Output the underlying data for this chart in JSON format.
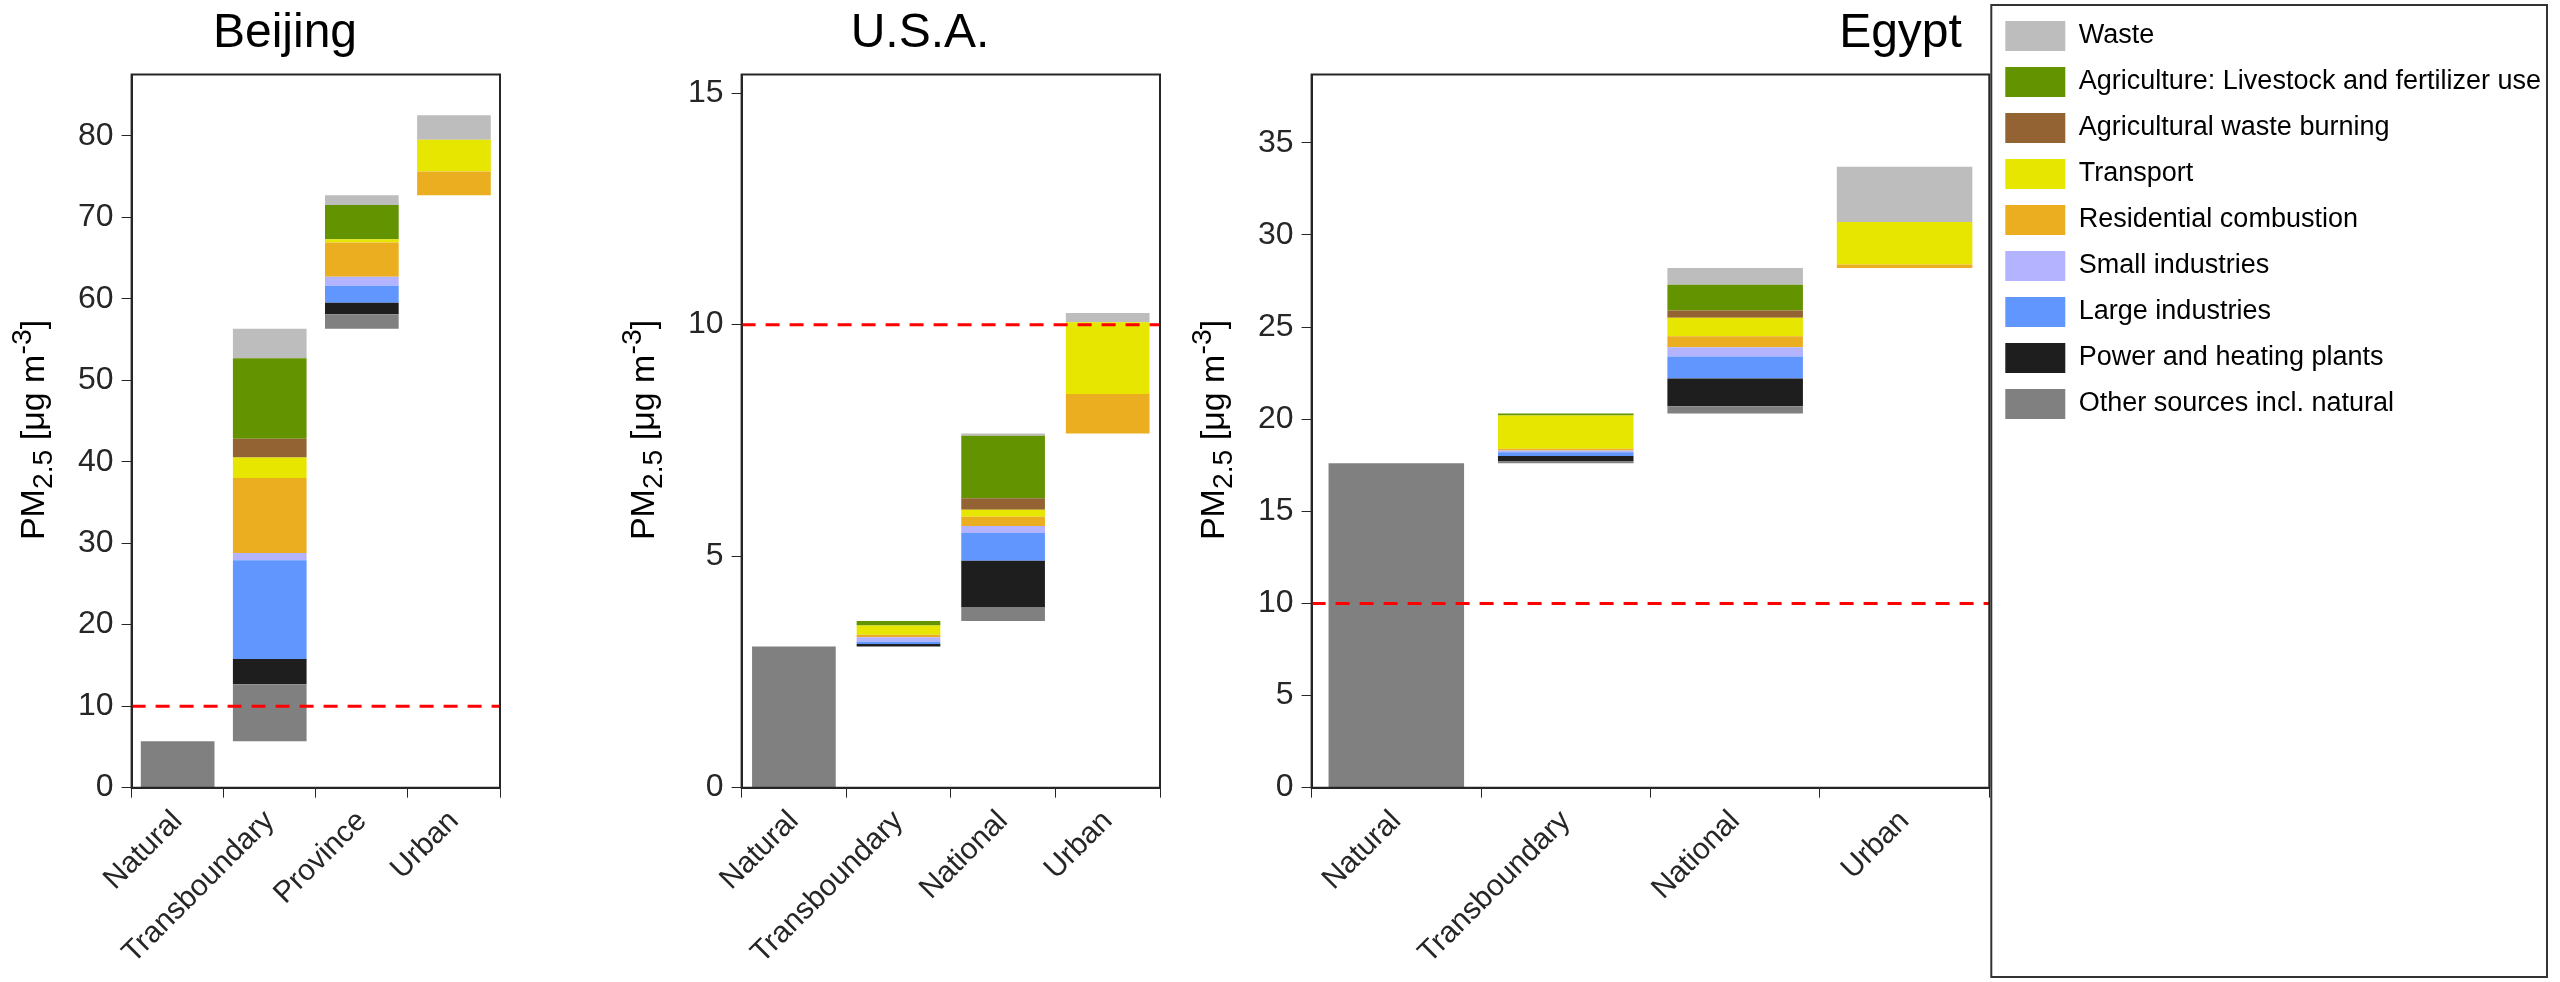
{
  "chart_data": [
    {
      "type": "bar",
      "title": "Beijing",
      "ylabel": "PM$_{2.5}$ [μg m$^{-3}$]",
      "categories": [
        "Natural",
        "Transboundary",
        "Province",
        "Urban"
      ],
      "series": [
        {
          "color": "#808080",
          "base": [
            0,
            5.7,
            56.3,
            null
          ],
          "values": [
            5.7,
            7.0,
            1.8,
            null
          ]
        },
        {
          "color": "#1e1e1e",
          "base": [
            null,
            12.7,
            58.1,
            null
          ],
          "values": [
            null,
            3.1,
            1.4,
            null
          ]
        },
        {
          "color": "#6196ff",
          "base": [
            null,
            15.8,
            59.5,
            null
          ],
          "values": [
            null,
            12.1,
            2.1,
            null
          ]
        },
        {
          "color": "#b3b3ff",
          "base": [
            null,
            27.9,
            61.6,
            null
          ],
          "values": [
            null,
            0.9,
            1.1,
            null
          ]
        },
        {
          "color": "#ebae20",
          "base": [
            null,
            28.8,
            62.7,
            72.7
          ],
          "values": [
            null,
            9.2,
            4.2,
            2.9
          ]
        },
        {
          "color": "#e6e600",
          "base": [
            null,
            38.0,
            66.9,
            75.6
          ],
          "values": [
            null,
            2.5,
            0.4,
            3.9
          ]
        },
        {
          "color": "#936333",
          "base": [
            null,
            40.5,
            null,
            null
          ],
          "values": [
            null,
            2.3,
            null,
            null
          ]
        },
        {
          "color": "#639400",
          "base": [
            null,
            42.8,
            67.3,
            null
          ],
          "values": [
            null,
            9.9,
            4.2,
            null
          ]
        },
        {
          "color": "#bdbdbd",
          "base": [
            null,
            52.7,
            71.5,
            79.5
          ],
          "values": [
            null,
            3.6,
            1.2,
            3.0
          ]
        }
      ],
      "ylim": [
        0,
        87.5
      ],
      "yticks": [
        0,
        10,
        20,
        30,
        40,
        50,
        60,
        70,
        80
      ],
      "grid": false,
      "legend": false,
      "ref_lines": [
        {
          "axis": "y",
          "value": 10,
          "color": "#ff0000",
          "line_style": "dashed"
        }
      ]
    },
    {
      "type": "bar",
      "title": "U.S.A.",
      "ylabel": "PM$_{2.5}$ [μg m$^{-3}$]",
      "categories": [
        "Natural",
        "Transboundary",
        "National",
        "Urban"
      ],
      "series": [
        {
          "color": "#808080",
          "base": [
            0,
            null,
            3.6,
            null
          ],
          "values": [
            3.05,
            null,
            0.3,
            null
          ]
        },
        {
          "color": "#1e1e1e",
          "base": [
            null,
            3.05,
            3.9,
            null
          ],
          "values": [
            null,
            0.05,
            1.0,
            null
          ]
        },
        {
          "color": "#6196ff",
          "base": [
            null,
            3.1,
            4.9,
            null
          ],
          "values": [
            null,
            0.05,
            0.6,
            null
          ]
        },
        {
          "color": "#b3b3ff",
          "base": [
            null,
            3.15,
            5.5,
            null
          ],
          "values": [
            null,
            0.1,
            0.15,
            null
          ]
        },
        {
          "color": "#ebae20",
          "base": [
            null,
            3.25,
            5.65,
            7.65
          ],
          "values": [
            null,
            0.05,
            0.2,
            0.85
          ]
        },
        {
          "color": "#e6e600",
          "base": [
            null,
            3.3,
            5.85,
            8.5
          ],
          "values": [
            null,
            0.2,
            0.15,
            1.55
          ]
        },
        {
          "color": "#936333",
          "base": [
            null,
            null,
            6.0,
            null
          ],
          "values": [
            null,
            null,
            0.25,
            null
          ]
        },
        {
          "color": "#639400",
          "base": [
            null,
            3.5,
            6.25,
            null
          ],
          "values": [
            null,
            0.1,
            1.35,
            null
          ]
        },
        {
          "color": "#bdbdbd",
          "base": [
            null,
            null,
            7.6,
            10.05
          ],
          "values": [
            null,
            null,
            0.05,
            0.2
          ]
        }
      ],
      "ylim": [
        0,
        15.4
      ],
      "yticks": [
        0,
        5,
        10,
        15
      ],
      "grid": false,
      "legend": false,
      "ref_lines": [
        {
          "axis": "y",
          "value": 10,
          "color": "#ff0000",
          "line_style": "dashed"
        }
      ]
    },
    {
      "type": "bar",
      "title": "Egypt",
      "ylabel": "PM$_{2.5}$ [μg m$^{-3}$]",
      "categories": [
        "Natural",
        "Transboundary",
        "National",
        "Urban"
      ],
      "series": [
        {
          "name": "Other sources incl. natural",
          "color": "#808080",
          "base": [
            0,
            17.6,
            20.3,
            null
          ],
          "values": [
            17.6,
            0.1,
            0.4,
            null
          ]
        },
        {
          "name": "Power and heating plants",
          "color": "#1e1e1e",
          "base": [
            null,
            17.7,
            20.7,
            null
          ],
          "values": [
            null,
            0.3,
            1.5,
            null
          ]
        },
        {
          "name": "Large industries",
          "color": "#6196ff",
          "base": [
            null,
            18.0,
            22.2,
            null
          ],
          "values": [
            null,
            0.2,
            1.2,
            null
          ]
        },
        {
          "name": "Small industries",
          "color": "#b3b3ff",
          "base": [
            null,
            18.2,
            23.4,
            null
          ],
          "values": [
            null,
            0.1,
            0.5,
            null
          ]
        },
        {
          "name": "Residential combustion",
          "color": "#ebae20",
          "base": [
            null,
            18.3,
            23.9,
            28.2
          ],
          "values": [
            null,
            0.1,
            0.6,
            0.2
          ]
        },
        {
          "name": "Transport",
          "color": "#e6e600",
          "base": [
            null,
            18.4,
            24.5,
            28.4
          ],
          "values": [
            null,
            1.8,
            1.0,
            2.3
          ]
        },
        {
          "name": "Agricultural waste burning",
          "color": "#936333",
          "base": [
            null,
            null,
            25.5,
            null
          ],
          "values": [
            null,
            null,
            0.4,
            null
          ]
        },
        {
          "name": "Agriculture: Livestock and fertilizer use",
          "color": "#639400",
          "base": [
            null,
            20.2,
            25.9,
            null
          ],
          "values": [
            null,
            0.1,
            1.4,
            null
          ]
        },
        {
          "name": "Waste",
          "color": "#bdbdbd",
          "base": [
            null,
            null,
            27.3,
            30.7
          ],
          "values": [
            null,
            null,
            0.9,
            3.0
          ]
        }
      ],
      "ylim": [
        0,
        38.7
      ],
      "yticks": [
        0,
        5,
        10,
        15,
        20,
        25,
        30,
        35
      ],
      "grid": false,
      "legend": "right",
      "ref_lines": [
        {
          "axis": "y",
          "value": 10,
          "color": "#ff0000",
          "line_style": "dashed"
        }
      ]
    }
  ]
}
